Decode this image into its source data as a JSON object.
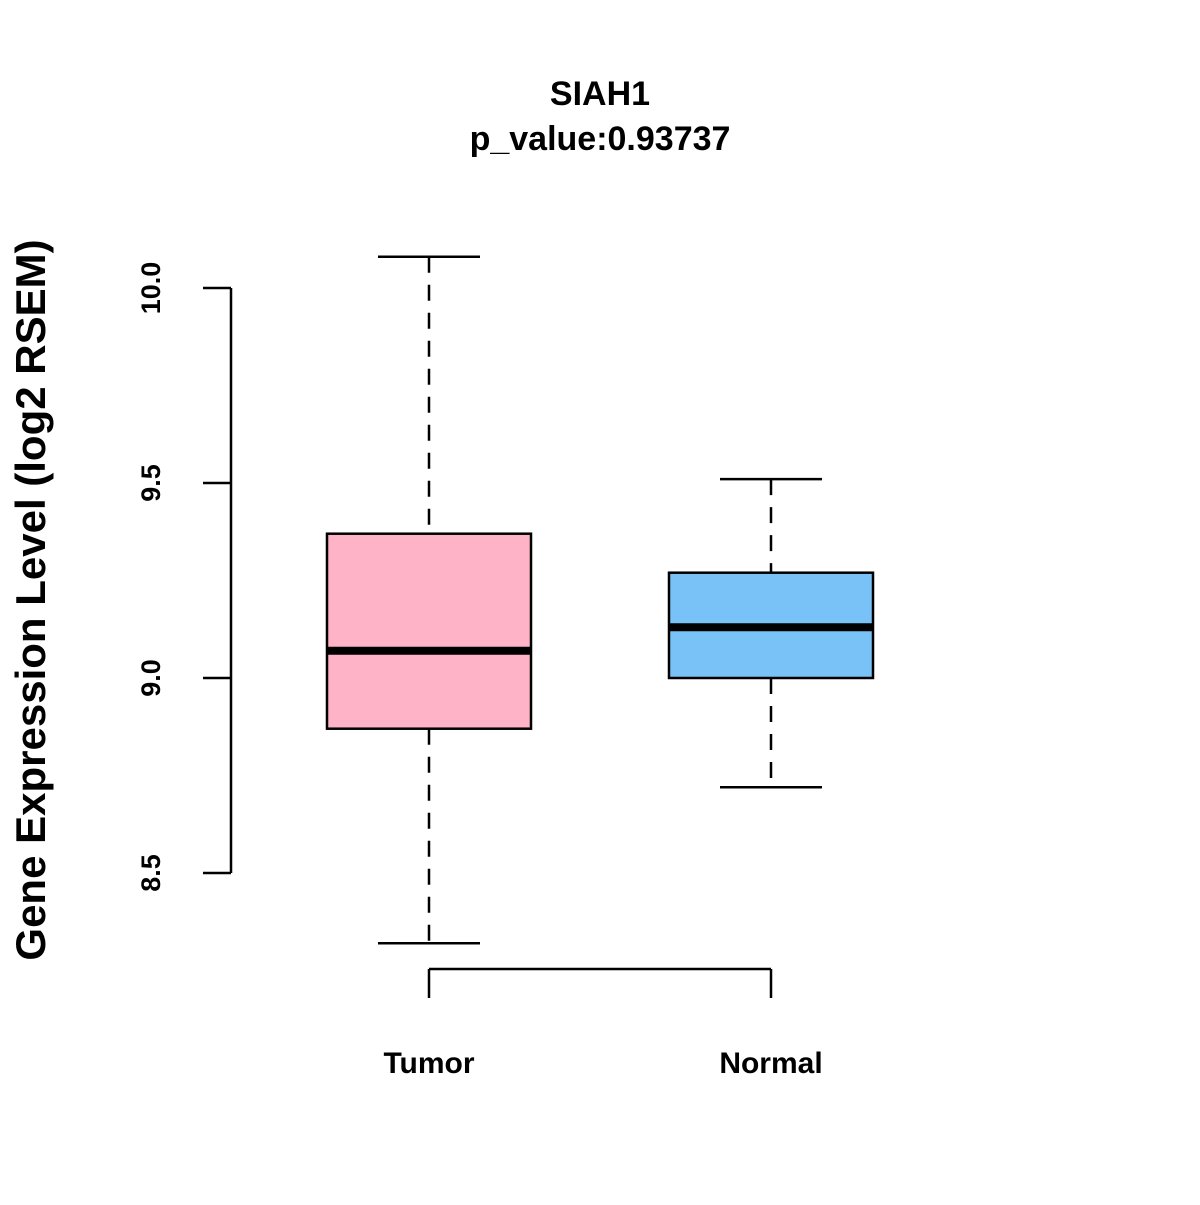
{
  "chart_data": {
    "type": "box",
    "title": "SIAH1",
    "subtitle": "p_value:0.93737",
    "xlabel": "",
    "ylabel": "Gene Expression Level (log2 RSEM)",
    "ylim": [
      8.25,
      10.1
    ],
    "yticks": [
      "8.5",
      "9.0",
      "9.5",
      "10.0"
    ],
    "grid": false,
    "categories": [
      "Tumor",
      "Normal"
    ],
    "series": [
      {
        "name": "Tumor",
        "color": "#FFB3C6",
        "whisker_low": 8.32,
        "q1": 8.87,
        "median": 9.07,
        "q3": 9.37,
        "whisker_high": 10.08
      },
      {
        "name": "Normal",
        "color": "#79C2F7",
        "whisker_low": 8.72,
        "q1": 9.0,
        "median": 9.13,
        "q3": 9.27,
        "whisker_high": 9.51
      }
    ]
  }
}
